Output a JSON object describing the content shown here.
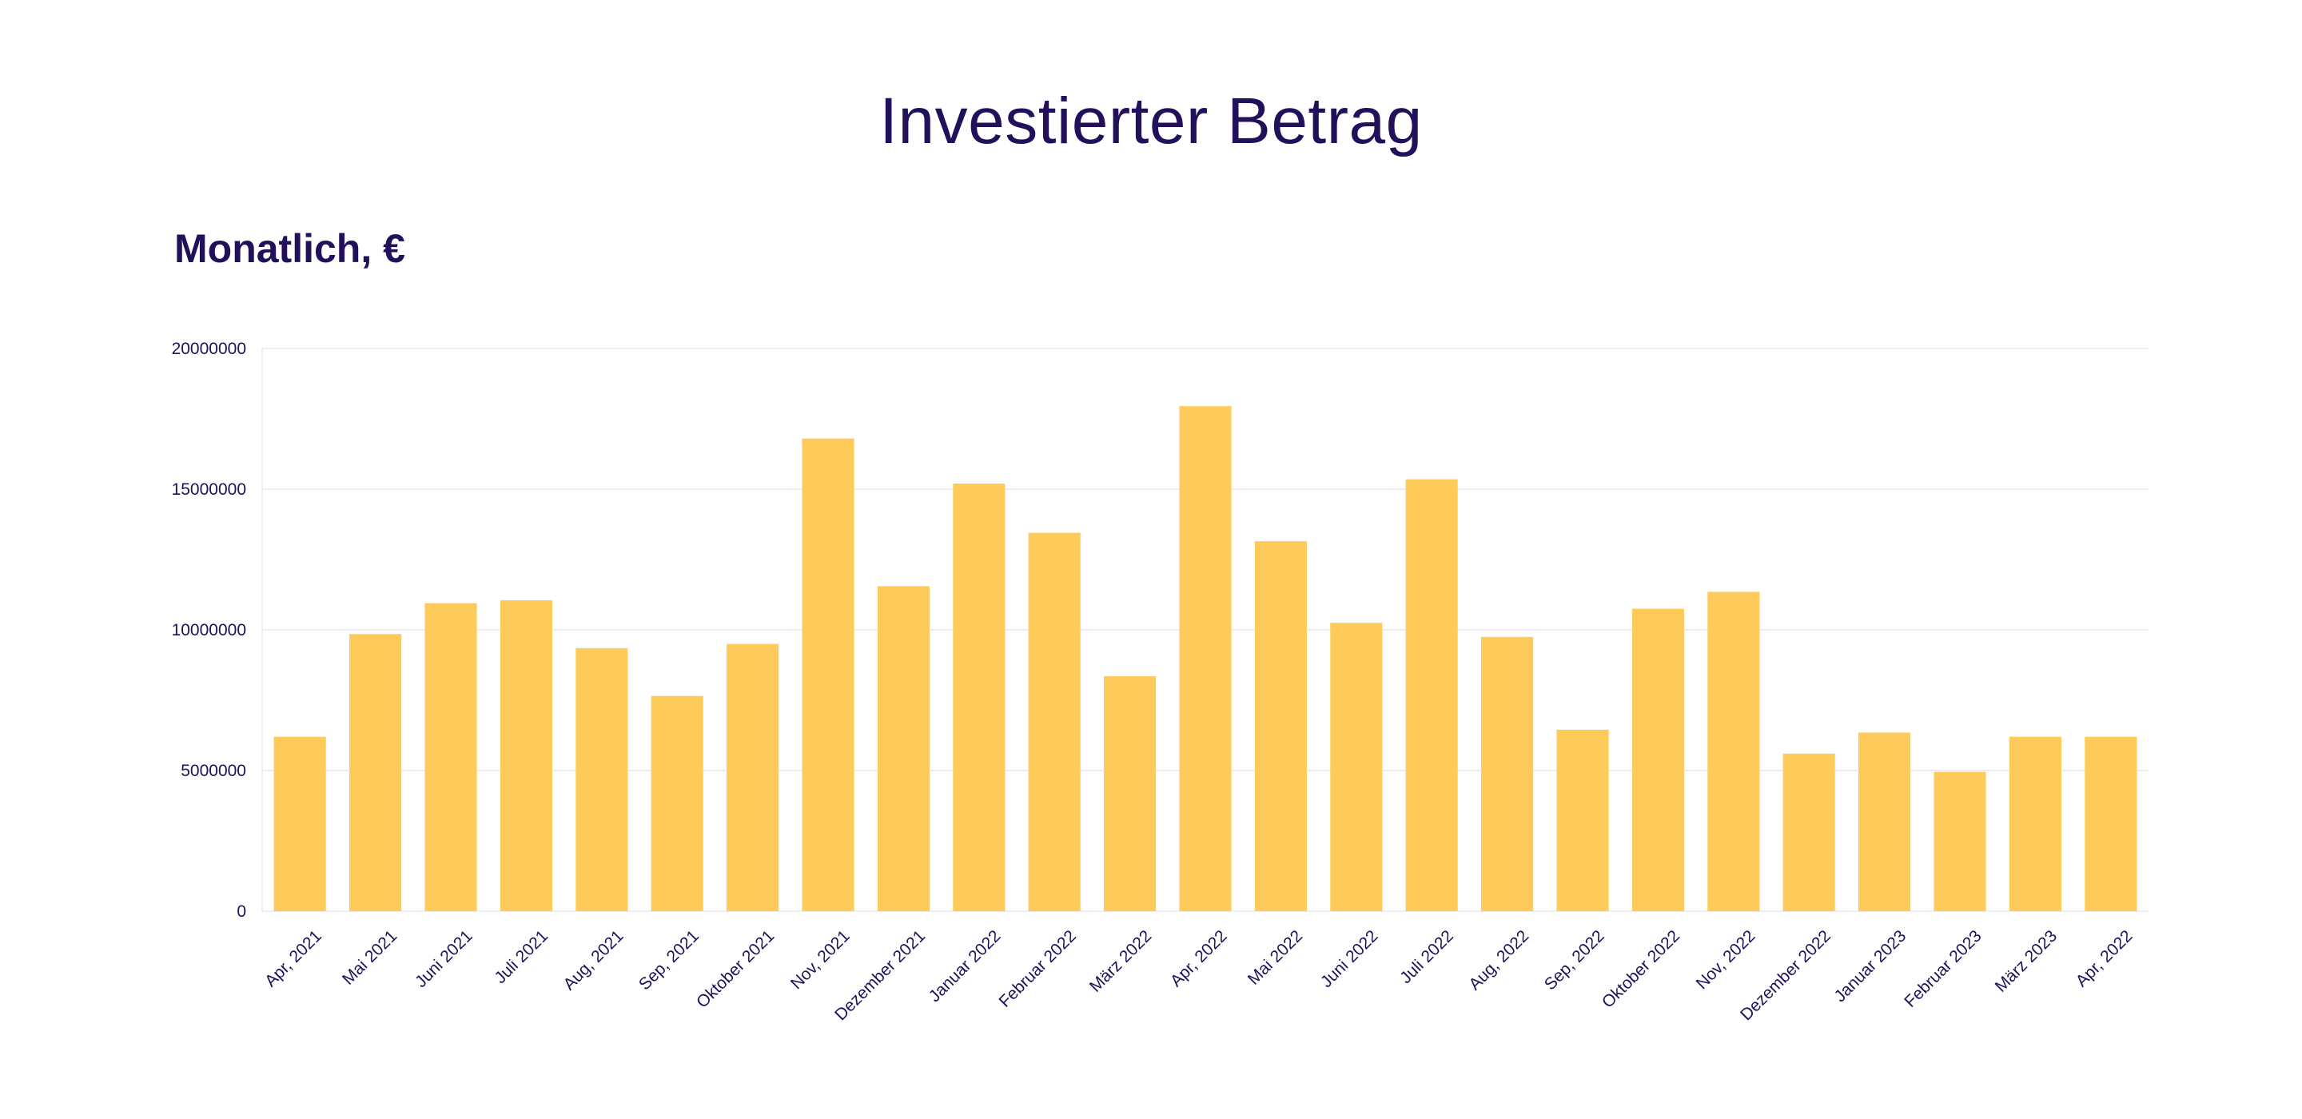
{
  "title": "Investierter Betrag",
  "subtitle": "Monatlich, €",
  "colors": {
    "bar": "#fecb5b",
    "text": "#22105a",
    "grid": "#e9e9ee"
  },
  "chart_data": {
    "type": "bar",
    "title": "Investierter Betrag",
    "subtitle": "Monatlich, €",
    "xlabel": "",
    "ylabel": "",
    "ylim": [
      0,
      20000000
    ],
    "yticks": [
      0,
      5000000,
      10000000,
      15000000,
      20000000
    ],
    "ytick_labels": [
      "0",
      "5000000",
      "10000000",
      "15000000",
      "20000000"
    ],
    "grid": true,
    "legend": "none",
    "categories": [
      "Apr, 2021",
      "Mai 2021",
      "Juni 2021",
      "Juli 2021",
      "Aug, 2021",
      "Sep, 2021",
      "Oktober 2021",
      "Nov, 2021",
      "Dezember 2021",
      "Januar 2022",
      "Februar 2022",
      "März 2022",
      "Apr, 2022",
      "Mai 2022",
      "Juni 2022",
      "Juli 2022",
      "Aug, 2022",
      "Sep, 2022",
      "Oktober 2022",
      "Nov, 2022",
      "Dezember 2022",
      "Januar 2023",
      "Februar 2023",
      "März 2023",
      "Apr, 2022"
    ],
    "values": [
      6200000,
      9850000,
      10950000,
      11050000,
      9350000,
      7650000,
      9500000,
      16800000,
      11550000,
      15200000,
      13450000,
      8350000,
      17950000,
      13150000,
      10250000,
      15350000,
      9750000,
      6450000,
      10750000,
      11350000,
      5600000,
      6350000,
      4950000,
      6200000,
      6200000
    ]
  }
}
